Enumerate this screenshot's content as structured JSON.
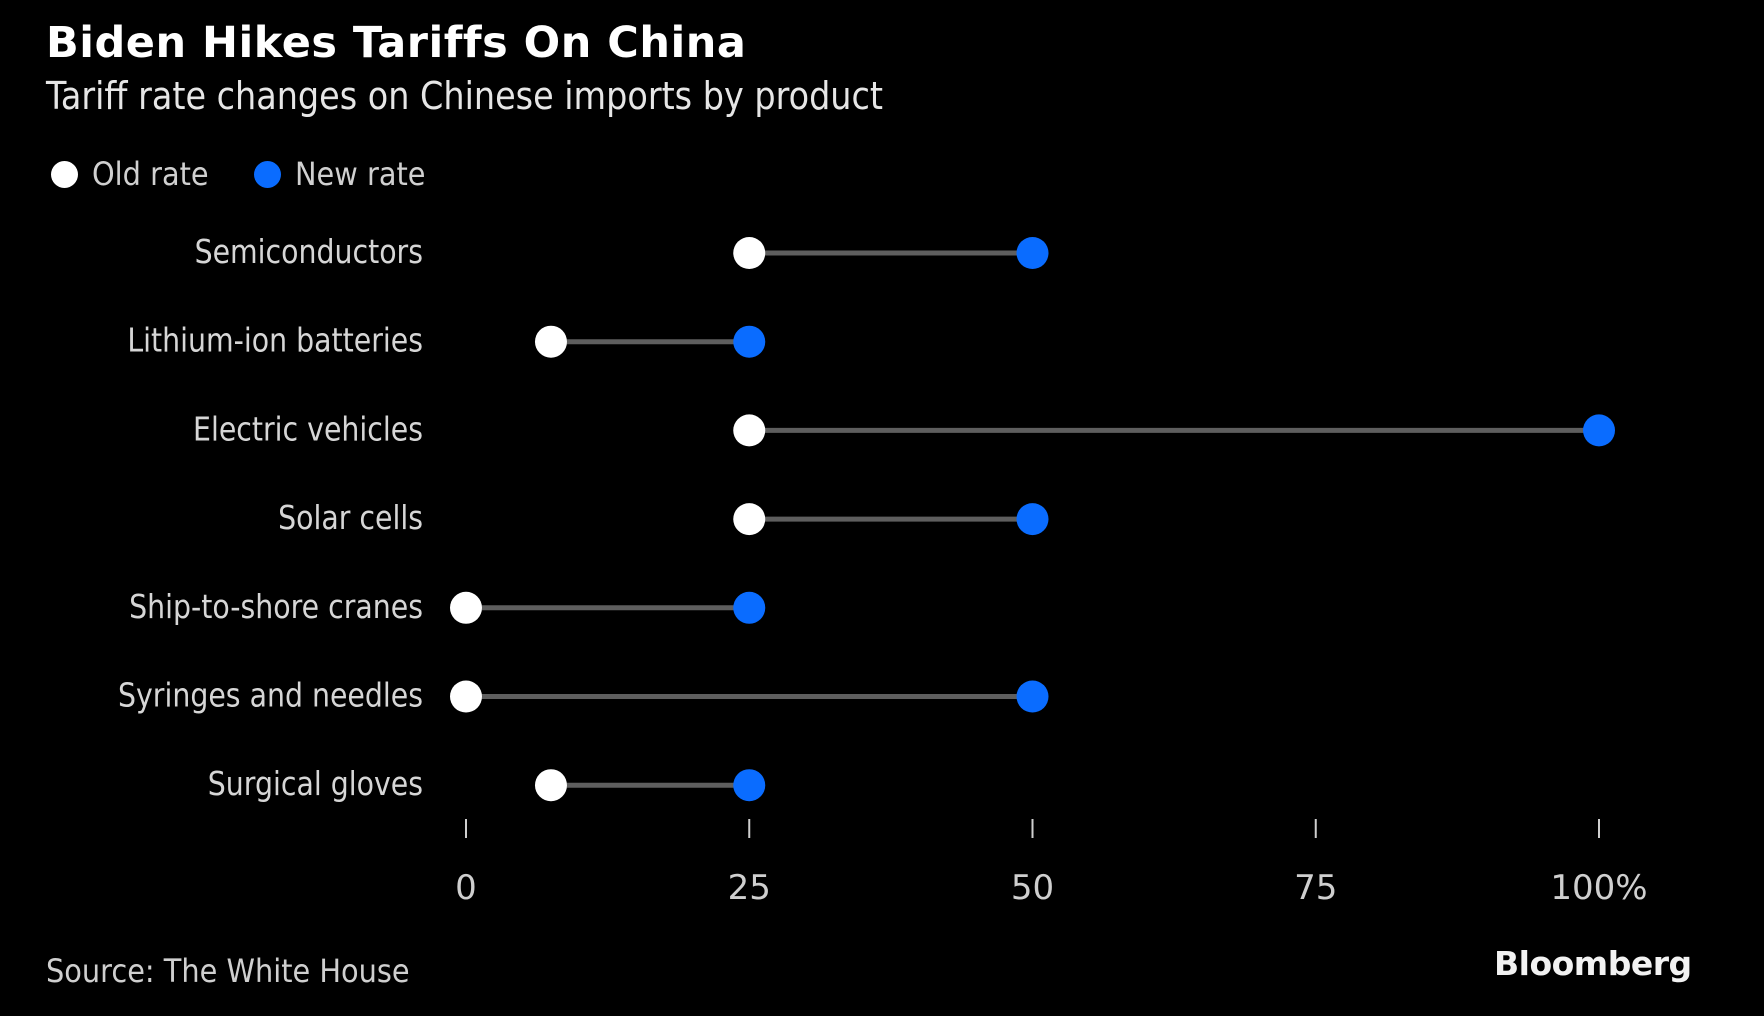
{
  "header": {
    "title": "Biden Hikes Tariffs On China",
    "subtitle": "Tariff rate changes on Chinese imports by product"
  },
  "legend": {
    "items": [
      {
        "label": "Old rate",
        "color": "#ffffff"
      },
      {
        "label": "New rate",
        "color": "#0a6cff"
      }
    ]
  },
  "footer": {
    "source": "Source: The White House",
    "brand": "Bloomberg"
  },
  "colors": {
    "background": "#000000",
    "old_rate": "#ffffff",
    "new_rate": "#0a6cff",
    "connector": "#5e5e5e",
    "label_text": "#d6d6d6",
    "tick": "#cfcfcf"
  },
  "chart_data": {
    "type": "dumbbell",
    "title": "Biden Hikes Tariffs On China",
    "subtitle": "Tariff rate changes on Chinese imports by product",
    "xlabel": "",
    "ylabel": "",
    "xlim": [
      0,
      100
    ],
    "x_ticks": [
      0,
      25,
      50,
      75,
      100
    ],
    "x_tick_labels": [
      "0",
      "25",
      "50",
      "75",
      "100%"
    ],
    "grid": false,
    "legend_position": "top-left",
    "categories": [
      "Semiconductors",
      "Lithium-ion batteries",
      "Electric vehicles",
      "Solar cells",
      "Ship-to-shore cranes",
      "Syringes and needles",
      "Surgical gloves"
    ],
    "series": [
      {
        "name": "Old rate",
        "values": [
          25,
          7.5,
          25,
          25,
          0,
          0,
          7.5
        ]
      },
      {
        "name": "New rate",
        "values": [
          50,
          25,
          100,
          50,
          25,
          50,
          25
        ]
      }
    ],
    "source": "Source: The White House"
  }
}
